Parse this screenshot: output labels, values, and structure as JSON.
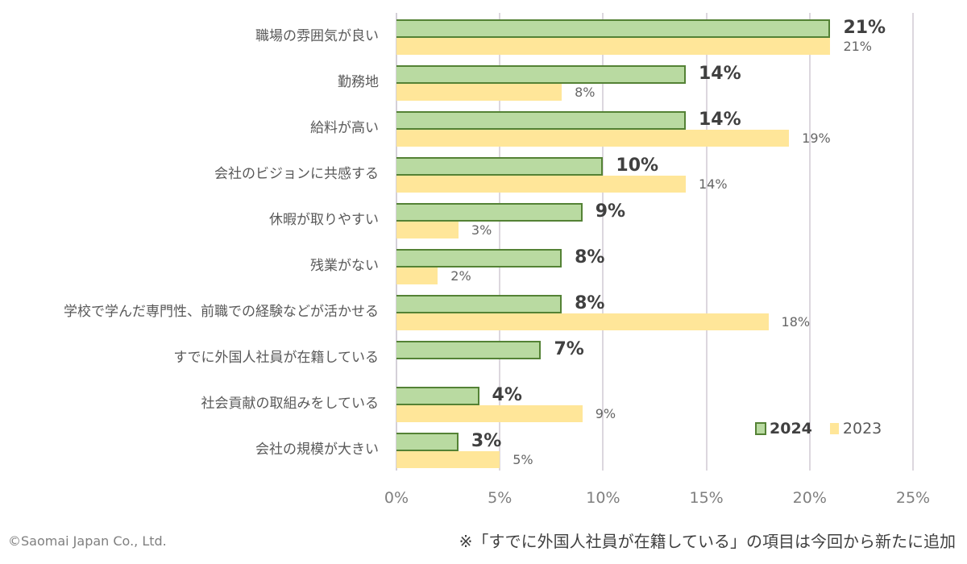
{
  "chart_data": {
    "type": "bar",
    "orientation": "horizontal",
    "title": "",
    "xlabel": "",
    "ylabel": "",
    "xlim": [
      0,
      25
    ],
    "x_ticks": [
      "0%",
      "5%",
      "10%",
      "15%",
      "20%",
      "25%"
    ],
    "grid": true,
    "legend_position": "bottom-right inside",
    "categories": [
      "職場の雰囲気が良い",
      "勤務地",
      "給料が高い",
      "会社のビジョンに共感する",
      "休暇が取りやすい",
      "残業がない",
      "学校で学んだ専門性、前職での経験などが活かせる",
      "すでに外国人社員が在籍している",
      "社会貢献の取組みをしている",
      "会社の規模が大きい"
    ],
    "series": [
      {
        "name": "2024",
        "color": "#b9daa1",
        "border": "#548235",
        "values": [
          21,
          14,
          14,
          10,
          9,
          8,
          8,
          7,
          4,
          3
        ],
        "labels": [
          "21%",
          "14%",
          "14%",
          "10%",
          "9%",
          "8%",
          "8%",
          "7%",
          "4%",
          "3%"
        ]
      },
      {
        "name": "2023",
        "color": "#ffe699",
        "values": [
          21,
          8,
          19,
          14,
          3,
          2,
          18,
          null,
          9,
          5
        ],
        "labels": [
          "21%",
          "8%",
          "19%",
          "14%",
          "3%",
          "2%",
          "18%",
          "",
          "9%",
          "5%"
        ]
      }
    ]
  },
  "legend": {
    "s2024": "2024",
    "s2023": "2023"
  },
  "footer": {
    "copyright": "©Saomai Japan Co., Ltd.",
    "note": "※「すでに外国人社員が在籍している」の項目は今回から新たに追加"
  }
}
